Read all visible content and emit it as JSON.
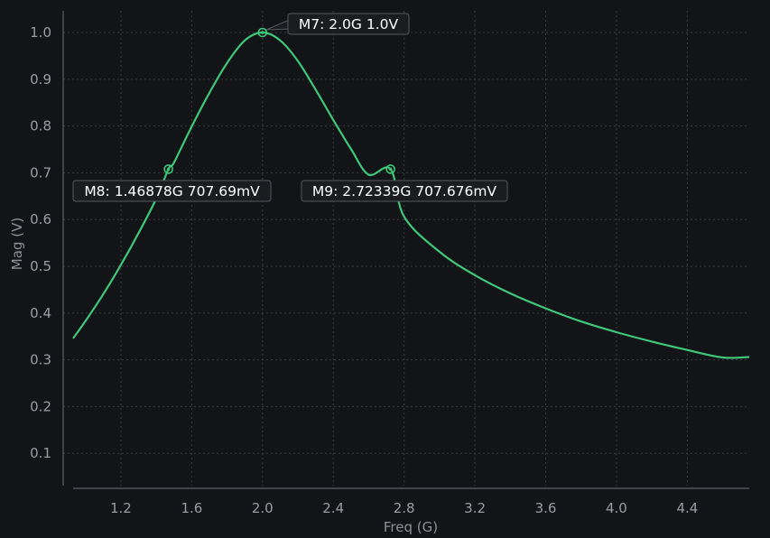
{
  "chart_data": {
    "type": "line",
    "title": "",
    "xlabel": "Freq (G)",
    "ylabel": "Mag (V)",
    "xlim": [
      0.93,
      4.75
    ],
    "ylim": [
      0.0,
      1.0
    ],
    "x_ticks": [
      1.2,
      1.6,
      2.0,
      2.4,
      2.8,
      3.2,
      3.6,
      4.0,
      4.4
    ],
    "x_tick_labels": [
      "1.2",
      "1.6",
      "2.0",
      "2.4",
      "2.8",
      "3.2",
      "3.6",
      "4.0",
      "4.4"
    ],
    "y_ticks": [
      0.1,
      0.2,
      0.3,
      0.4,
      0.5,
      0.6,
      0.7,
      0.8,
      0.9,
      1.0
    ],
    "y_tick_labels": [
      "0.1",
      "0.2",
      "0.3",
      "0.4",
      "0.5",
      "0.6",
      "0.7",
      "0.8",
      "0.9",
      "1.0"
    ],
    "grid": true,
    "series": [
      {
        "x": [
          0.93,
          1.0,
          1.1,
          1.2,
          1.3,
          1.4,
          1.46878,
          1.5,
          1.6,
          1.7,
          1.8,
          1.9,
          2.0,
          2.1,
          2.2,
          2.3,
          2.4,
          2.5,
          2.6,
          2.72339,
          2.8,
          3.0,
          3.2,
          3.4,
          3.6,
          3.8,
          4.0,
          4.2,
          4.4,
          4.6,
          4.75
        ],
        "y": [
          0.346,
          0.383,
          0.44,
          0.503,
          0.571,
          0.645,
          0.708,
          0.722,
          0.799,
          0.871,
          0.935,
          0.983,
          1.0,
          0.983,
          0.939,
          0.878,
          0.813,
          0.751,
          0.696,
          0.708,
          0.606,
          0.531,
          0.481,
          0.442,
          0.41,
          0.382,
          0.359,
          0.339,
          0.321,
          0.305,
          0.306
        ],
        "color": "#3fc77a"
      }
    ],
    "markers": [
      {
        "x": 2.0,
        "y": 1.0,
        "label": "M7: 2.0G 1.0V"
      },
      {
        "x": 1.46878,
        "y": 0.70769,
        "label": "M8: 1.46878G 707.69mV"
      },
      {
        "x": 2.72339,
        "y": 0.707676,
        "label": "M9: 2.72339G 707.676mV"
      }
    ],
    "colors": {
      "background": "#131417",
      "grid": "#3a3d43",
      "axis": "#5d6066",
      "label_box": "#1b1c20",
      "label_border": "#55585e"
    }
  }
}
